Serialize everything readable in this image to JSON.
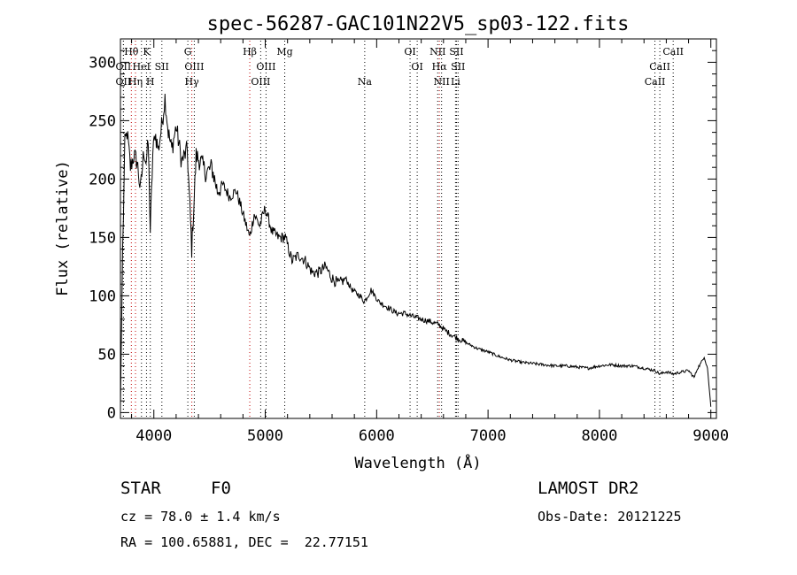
{
  "chart_data": {
    "type": "line",
    "title": "spec-56287-GAC101N22V5_sp03-122.fits",
    "xlabel": "Wavelength (Å)",
    "ylabel": "Flux (relative)",
    "xlim": [
      3700,
      9050
    ],
    "ylim": [
      -5,
      320
    ],
    "xticks": [
      4000,
      5000,
      6000,
      7000,
      8000,
      9000
    ],
    "yticks": [
      0,
      50,
      100,
      150,
      200,
      250,
      300
    ],
    "grid": false,
    "series": [
      {
        "name": "Flux",
        "x": [
          3700,
          3720,
          3740,
          3760,
          3790,
          3820,
          3850,
          3880,
          3910,
          3930,
          3950,
          3968,
          3990,
          4010,
          4040,
          4070,
          4100,
          4130,
          4160,
          4200,
          4250,
          4300,
          4340,
          4380,
          4420,
          4470,
          4520,
          4570,
          4620,
          4680,
          4740,
          4800,
          4861,
          4900,
          4950,
          5000,
          5060,
          5120,
          5180,
          5240,
          5300,
          5360,
          5420,
          5480,
          5540,
          5600,
          5660,
          5720,
          5780,
          5850,
          5890,
          5950,
          6020,
          6100,
          6180,
          6250,
          6330,
          6400,
          6480,
          6563,
          6620,
          6700,
          6800,
          6900,
          7000,
          7100,
          7200,
          7300,
          7400,
          7500,
          7600,
          7700,
          7800,
          7900,
          8000,
          8100,
          8200,
          8300,
          8400,
          8500,
          8542,
          8600,
          8662,
          8700,
          8750,
          8800,
          8850,
          8880,
          8910,
          8940,
          8970,
          9000
        ],
        "y": [
          5,
          140,
          230,
          240,
          210,
          220,
          215,
          190,
          225,
          215,
          230,
          155,
          220,
          240,
          225,
          245,
          270,
          240,
          225,
          245,
          215,
          225,
          140,
          220,
          215,
          205,
          210,
          190,
          195,
          185,
          190,
          170,
          150,
          170,
          160,
          175,
          155,
          150,
          150,
          130,
          135,
          130,
          120,
          120,
          125,
          115,
          110,
          115,
          105,
          100,
          95,
          105,
          95,
          90,
          85,
          85,
          82,
          80,
          78,
          75,
          70,
          65,
          60,
          55,
          52,
          48,
          45,
          43,
          42,
          41,
          40,
          40,
          39,
          38,
          40,
          41,
          40,
          40,
          38,
          36,
          33,
          35,
          33,
          34,
          35,
          36,
          30,
          38,
          42,
          48,
          38,
          5
        ]
      }
    ],
    "lines": [
      {
        "label": "Hθ",
        "wavelength": 3798,
        "color": "#c00000",
        "row": 0
      },
      {
        "label": "OII",
        "wavelength": 3727,
        "color": "#000000",
        "row": 1
      },
      {
        "label": "OII",
        "wavelength": 3727,
        "color": "#000000",
        "row": 2
      },
      {
        "label": "Hη",
        "wavelength": 3835,
        "color": "#c00000",
        "row": 2
      },
      {
        "label": "K",
        "wavelength": 3934,
        "color": "#000000",
        "row": 0
      },
      {
        "label": "HeI",
        "wavelength": 3889,
        "color": "#000000",
        "row": 1
      },
      {
        "label": "SII",
        "wavelength": 4072,
        "color": "#000000",
        "row": 1
      },
      {
        "label": "H",
        "wavelength": 3968,
        "color": "#000000",
        "row": 2
      },
      {
        "label": "G",
        "wavelength": 4305,
        "color": "#000000",
        "row": 0
      },
      {
        "label": "OIII",
        "wavelength": 4363,
        "color": "#000000",
        "row": 1
      },
      {
        "label": "Hγ",
        "wavelength": 4341,
        "color": "#c00000",
        "row": 2
      },
      {
        "label": "Hβ",
        "wavelength": 4861,
        "color": "#c00000",
        "row": 0
      },
      {
        "label": "OIII",
        "wavelength": 5007,
        "color": "#000000",
        "row": 1
      },
      {
        "label": "OIII",
        "wavelength": 4959,
        "color": "#000000",
        "row": 2
      },
      {
        "label": "Mg",
        "wavelength": 5175,
        "color": "#000000",
        "row": 0
      },
      {
        "label": "Na",
        "wavelength": 5893,
        "color": "#000000",
        "row": 2
      },
      {
        "label": "OI",
        "wavelength": 6300,
        "color": "#000000",
        "row": 0
      },
      {
        "label": "OI",
        "wavelength": 6364,
        "color": "#000000",
        "row": 1
      },
      {
        "label": "NII",
        "wavelength": 6548,
        "color": "#000000",
        "row": 0
      },
      {
        "label": "SII",
        "wavelength": 6717,
        "color": "#000000",
        "row": 0
      },
      {
        "label": "Hα",
        "wavelength": 6563,
        "color": "#c00000",
        "row": 1
      },
      {
        "label": "SII",
        "wavelength": 6731,
        "color": "#000000",
        "row": 1
      },
      {
        "label": "NII",
        "wavelength": 6583,
        "color": "#000000",
        "row": 2
      },
      {
        "label": "Li",
        "wavelength": 6708,
        "color": "#000000",
        "row": 2
      },
      {
        "label": "CaII",
        "wavelength": 8662,
        "color": "#000000",
        "row": 0
      },
      {
        "label": "CaII",
        "wavelength": 8542,
        "color": "#000000",
        "row": 1
      },
      {
        "label": "CaII",
        "wavelength": 8498,
        "color": "#000000",
        "row": 2
      }
    ]
  },
  "info": {
    "class_label": "STAR",
    "subclass": "F0",
    "survey": "LAMOST DR2",
    "redshift_line": "cz = 78.0 ± 1.4 km/s",
    "obs_date": "Obs-Date: 20121225",
    "coords": "RA = 100.65881, DEC =  22.77151"
  }
}
